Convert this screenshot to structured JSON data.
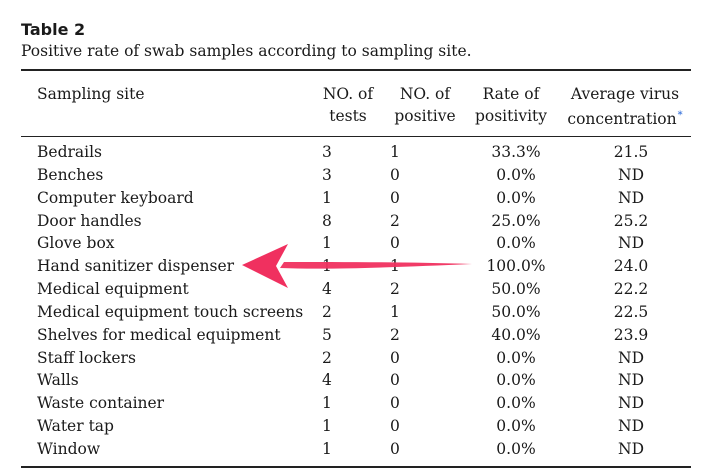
{
  "caption": {
    "label": "Table 2",
    "title": "Positive rate of swab samples according to sampling site."
  },
  "headers": {
    "site": "Sampling site",
    "tests_1": "NO. of",
    "tests_2": "tests",
    "positive_1": "NO. of",
    "positive_2": "positive",
    "rate_1": "Rate of",
    "rate_2": "positivity",
    "virus_1": "Average virus",
    "virus_2": "concentration",
    "virus_mark": "*"
  },
  "rows": [
    {
      "site": "Bedrails",
      "tests": "3",
      "positive": "1",
      "rate": "33.3%",
      "virus": "21.5"
    },
    {
      "site": "Benches",
      "tests": "3",
      "positive": "0",
      "rate": "0.0%",
      "virus": "ND"
    },
    {
      "site": "Computer keyboard",
      "tests": "1",
      "positive": "0",
      "rate": "0.0%",
      "virus": "ND"
    },
    {
      "site": "Door handles",
      "tests": "8",
      "positive": "2",
      "rate": "25.0%",
      "virus": "25.2"
    },
    {
      "site": "Glove box",
      "tests": "1",
      "positive": "0",
      "rate": "0.0%",
      "virus": "ND"
    },
    {
      "site": "Hand sanitizer dispenser",
      "tests": "1",
      "positive": "1",
      "rate": "100.0%",
      "virus": "24.0"
    },
    {
      "site": "Medical equipment",
      "tests": "4",
      "positive": "2",
      "rate": "50.0%",
      "virus": "22.2"
    },
    {
      "site": "Medical equipment touch screens",
      "tests": "2",
      "positive": "1",
      "rate": "50.0%",
      "virus": "22.5"
    },
    {
      "site": "Shelves for medical equipment",
      "tests": "5",
      "positive": "2",
      "rate": "40.0%",
      "virus": "23.9"
    },
    {
      "site": "Staff lockers",
      "tests": "2",
      "positive": "0",
      "rate": "0.0%",
      "virus": "ND"
    },
    {
      "site": "Walls",
      "tests": "4",
      "positive": "0",
      "rate": "0.0%",
      "virus": "ND"
    },
    {
      "site": "Waste container",
      "tests": "1",
      "positive": "0",
      "rate": "0.0%",
      "virus": "ND"
    },
    {
      "site": "Water tap",
      "tests": "1",
      "positive": "0",
      "rate": "0.0%",
      "virus": "ND"
    },
    {
      "site": "Window",
      "tests": "1",
      "positive": "0",
      "rate": "0.0%",
      "virus": "ND"
    }
  ],
  "annotation": {
    "color": "#f0305f",
    "icon": "arrow-left-icon"
  }
}
